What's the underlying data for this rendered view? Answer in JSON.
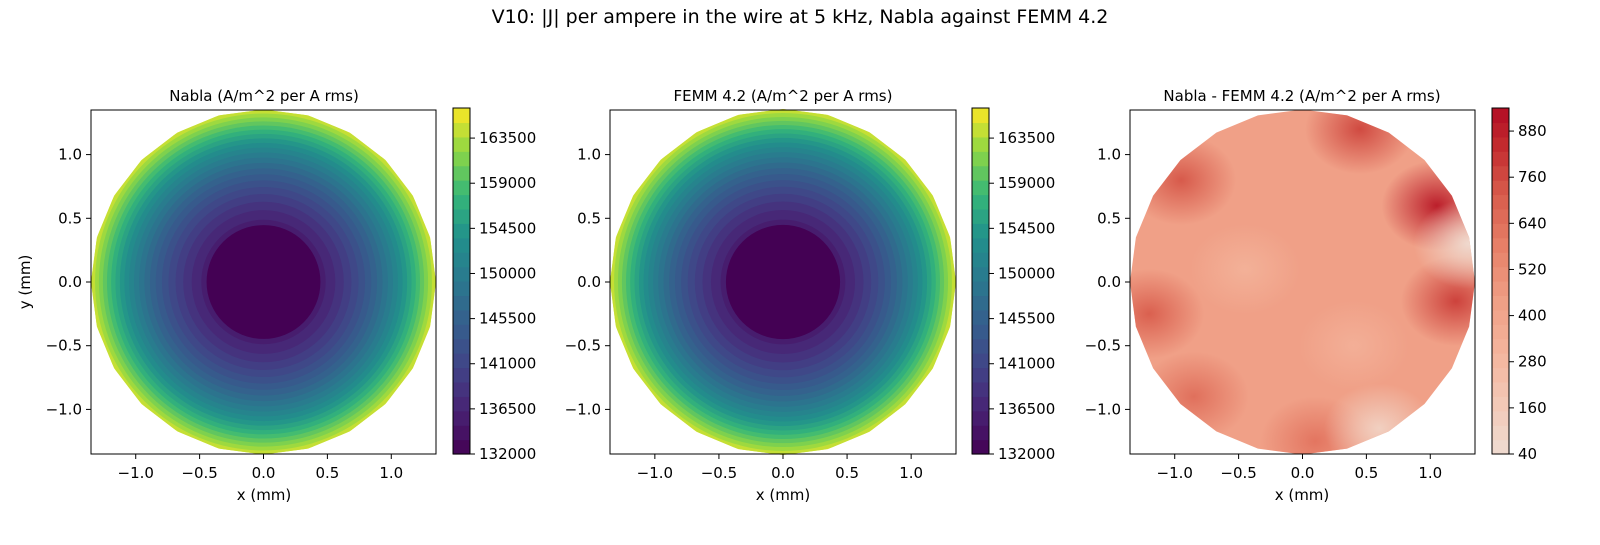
{
  "figure": {
    "title": "V10: |J| per ampere in the wire at 5 kHz, Nabla against FEMM 4.2"
  },
  "chart_data": [
    {
      "type": "heatmap",
      "title": "Nabla (A/m^2 per A rms)",
      "xlabel": "x (mm)",
      "ylabel": "y (mm)",
      "xlim": [
        -1.35,
        1.35
      ],
      "ylim": [
        -1.35,
        1.35
      ],
      "x_ticks": [
        "−1.0",
        "−0.5",
        "0.0",
        "0.5",
        "1.0"
      ],
      "y_ticks": [
        "1.0",
        "0.5",
        "0.0",
        "−0.5",
        "−1.0"
      ],
      "x_tick_values": [
        -1.0,
        -0.5,
        0.0,
        0.5,
        1.0
      ],
      "y_tick_values": [
        1.0,
        0.5,
        0.0,
        -0.5,
        -1.0
      ],
      "domain_radius": 1.35,
      "field": "radial",
      "center_value": 132000,
      "edge_value": 166500,
      "colormap": "viridis",
      "colorbar": {
        "range": [
          132000,
          166500
        ],
        "ticks": [
          132000,
          136500,
          141000,
          145500,
          150000,
          154500,
          159000,
          163500
        ],
        "tick_labels": [
          "132000",
          "136500",
          "141000",
          "145500",
          "150000",
          "154500",
          "159000",
          "163500"
        ]
      },
      "grid": false
    },
    {
      "type": "heatmap",
      "title": "FEMM 4.2 (A/m^2 per A rms)",
      "xlabel": "x (mm)",
      "ylabel": "",
      "xlim": [
        -1.35,
        1.35
      ],
      "ylim": [
        -1.35,
        1.35
      ],
      "x_ticks": [
        "−1.0",
        "−0.5",
        "0.0",
        "0.5",
        "1.0"
      ],
      "y_ticks": [
        "1.0",
        "0.5",
        "0.0",
        "−0.5",
        "−1.0"
      ],
      "x_tick_values": [
        -1.0,
        -0.5,
        0.0,
        0.5,
        1.0
      ],
      "y_tick_values": [
        1.0,
        0.5,
        0.0,
        -0.5,
        -1.0
      ],
      "domain_radius": 1.35,
      "field": "radial",
      "center_value": 132000,
      "edge_value": 166500,
      "colormap": "viridis",
      "colorbar": {
        "range": [
          132000,
          166500
        ],
        "ticks": [
          132000,
          136500,
          141000,
          145500,
          150000,
          154500,
          159000,
          163500
        ],
        "tick_labels": [
          "132000",
          "136500",
          "141000",
          "145500",
          "150000",
          "154500",
          "159000",
          "163500"
        ]
      },
      "grid": false
    },
    {
      "type": "heatmap",
      "title": "Nabla - FEMM 4.2 (A/m^2 per A rms)",
      "xlabel": "x (mm)",
      "ylabel": "",
      "xlim": [
        -1.35,
        1.35
      ],
      "ylim": [
        -1.35,
        1.35
      ],
      "x_ticks": [
        "−1.0",
        "−0.5",
        "0.0",
        "0.5",
        "1.0"
      ],
      "y_ticks": [
        "1.0",
        "0.5",
        "0.0",
        "−0.5",
        "−1.0"
      ],
      "x_tick_values": [
        -1.0,
        -0.5,
        0.0,
        0.5,
        1.0
      ],
      "y_tick_values": [
        1.0,
        0.5,
        0.0,
        -0.5,
        -1.0
      ],
      "domain_radius": 1.35,
      "field": "difference",
      "background_value": 430,
      "hotspots": [
        {
          "x": -0.95,
          "y": 0.8,
          "value": 720
        },
        {
          "x": -1.2,
          "y": -0.25,
          "value": 700
        },
        {
          "x": -0.85,
          "y": -0.9,
          "value": 640
        },
        {
          "x": 0.45,
          "y": 1.2,
          "value": 760
        },
        {
          "x": 1.05,
          "y": 0.6,
          "value": 880
        },
        {
          "x": 1.2,
          "y": -0.15,
          "value": 780
        },
        {
          "x": 0.1,
          "y": -1.25,
          "value": 620
        },
        {
          "x": 1.3,
          "y": 0.3,
          "value": 60
        },
        {
          "x": 0.6,
          "y": -1.15,
          "value": 120
        },
        {
          "x": -0.45,
          "y": 0.1,
          "value": 330
        },
        {
          "x": 0.4,
          "y": -0.5,
          "value": 340
        }
      ],
      "colormap": "reds",
      "colorbar": {
        "range": [
          40,
          940
        ],
        "ticks": [
          40,
          160,
          280,
          400,
          520,
          640,
          760,
          880
        ],
        "tick_labels": [
          "40",
          "160",
          "280",
          "400",
          "520",
          "640",
          "760",
          "880"
        ]
      },
      "grid": false
    }
  ]
}
